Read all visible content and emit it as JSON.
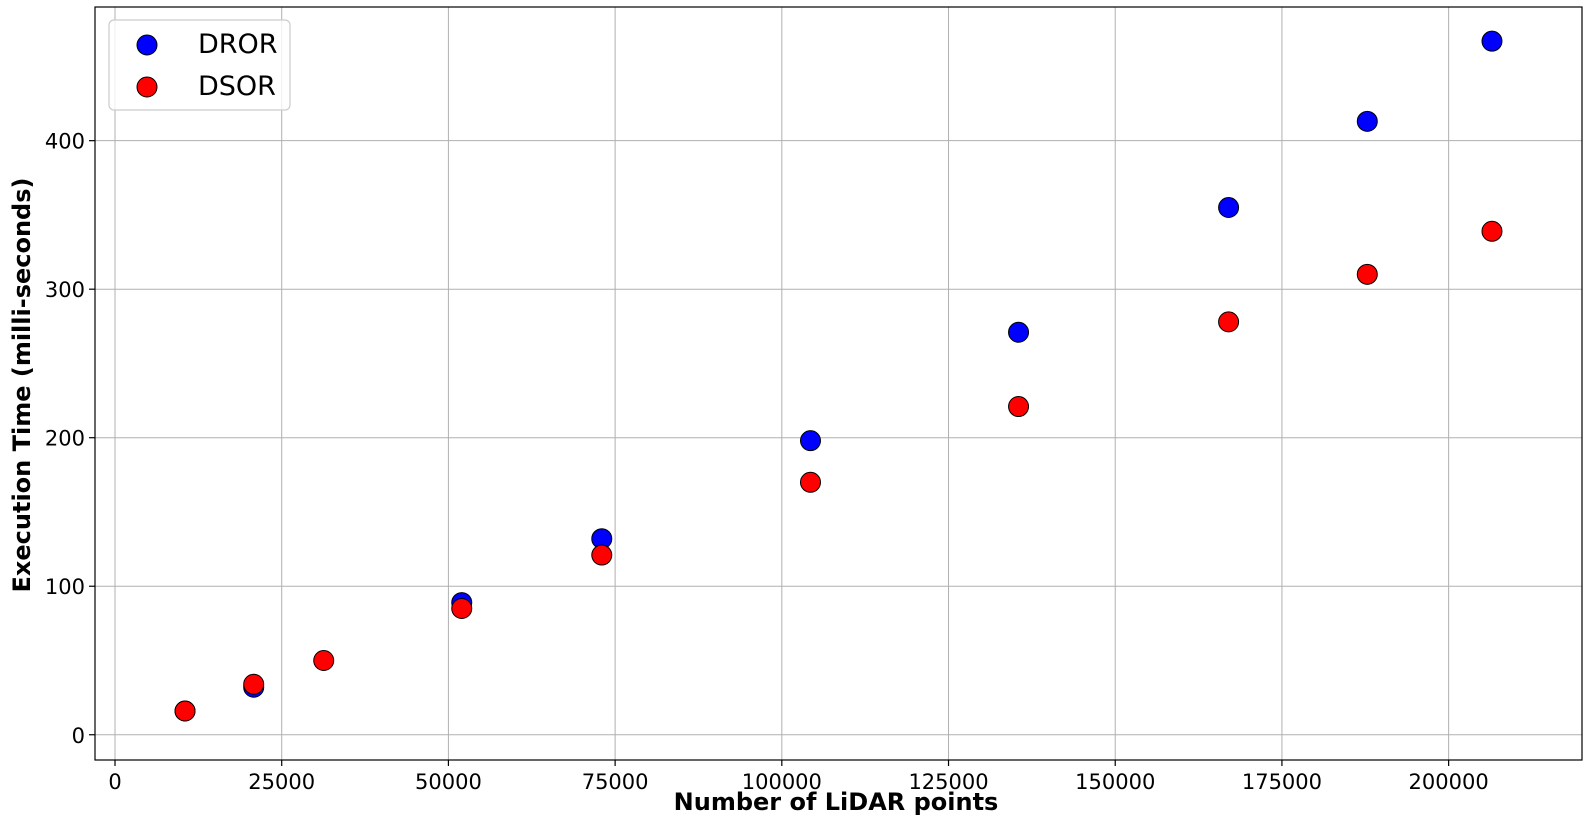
{
  "chart_data": {
    "type": "scatter",
    "title": "",
    "xlabel": "Number of LiDAR points",
    "ylabel": "Execution Time (milli-seconds)",
    "xlim": [
      -3000,
      220000
    ],
    "ylim": [
      -17,
      490
    ],
    "xticks": [
      0,
      25000,
      50000,
      75000,
      100000,
      125000,
      150000,
      175000,
      200000
    ],
    "yticks": [
      0,
      100,
      200,
      300,
      400
    ],
    "grid": true,
    "legend_position": "top-left",
    "series": [
      {
        "name": "DROR",
        "color": "#0000ff",
        "x": [
          10500,
          20800,
          52000,
          73000,
          104300,
          135500,
          167000,
          187800,
          206500
        ],
        "y": [
          16,
          32,
          89,
          132,
          198,
          271,
          355,
          413,
          467
        ]
      },
      {
        "name": "DSOR",
        "color": "#ff0000",
        "x": [
          10500,
          20800,
          31300,
          52000,
          73000,
          104300,
          135500,
          167000,
          187800,
          206500
        ],
        "y": [
          16,
          34,
          50,
          85,
          121,
          170,
          221,
          278,
          310,
          339
        ]
      }
    ]
  }
}
